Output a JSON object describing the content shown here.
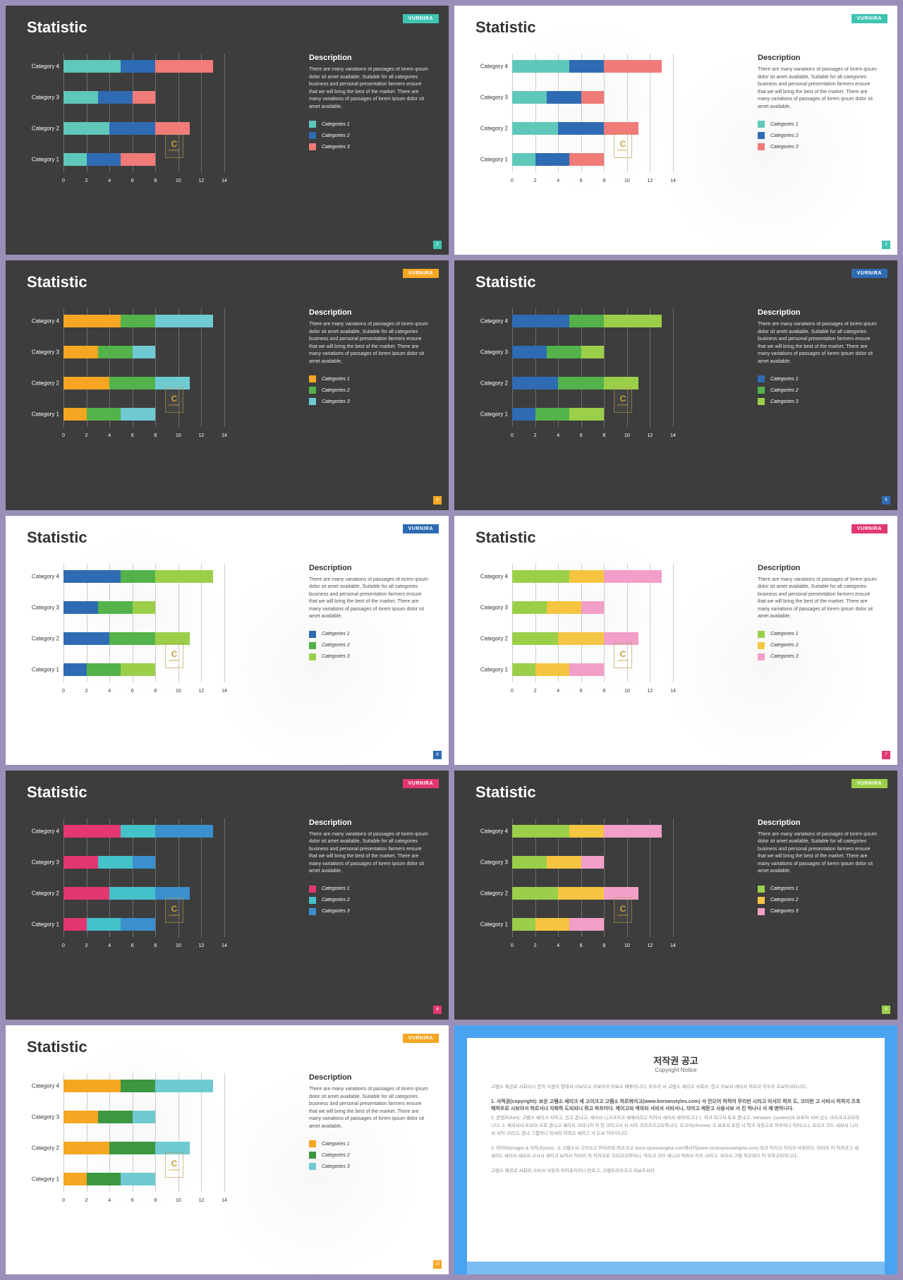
{
  "common": {
    "title": "Statistic",
    "badge_text": "VURNIRA",
    "desc_title": "Description",
    "desc_text": "There are many variations of passages of lorem ipsum dolor sit amet available, Suitable for all categories business and personal presentation farmers ensure that we will bring the best of the market. There are many variations of passages of lorem ipsum dolor sit amet available,",
    "legend_labels": [
      "Categories 1",
      "Categories 2",
      "Categories 3"
    ],
    "categories": [
      "Category 4",
      "Category 3",
      "Category 2",
      "Category 1"
    ],
    "x_ticks": [
      0,
      2,
      4,
      6,
      8,
      10,
      12,
      14
    ],
    "x_max": 14,
    "watermark": "C"
  },
  "bar_data": [
    [
      5,
      3,
      5
    ],
    [
      3,
      3,
      2
    ],
    [
      4,
      4,
      3
    ],
    [
      2,
      3,
      3
    ]
  ],
  "slides": [
    {
      "theme": "dark",
      "badge": "#3fc4b0",
      "colors": [
        "#5fc8ba",
        "#2e6bb3",
        "#f07b78"
      ],
      "page": 2
    },
    {
      "theme": "light",
      "badge": "#3fc4b0",
      "colors": [
        "#5fc8ba",
        "#2e6bb3",
        "#f07b78"
      ],
      "page": 3
    },
    {
      "theme": "dark",
      "badge": "#f5a623",
      "colors": [
        "#f5a623",
        "#53b24a",
        "#6fcad2"
      ],
      "page": 4
    },
    {
      "theme": "dark",
      "badge": "#2e6bb3",
      "colors": [
        "#2e6bb3",
        "#53b24a",
        "#9bcf4a"
      ],
      "page": 5
    },
    {
      "theme": "light",
      "badge": "#2e6bb3",
      "colors": [
        "#2e6bb3",
        "#53b24a",
        "#9bcf4a"
      ],
      "page": 6
    },
    {
      "theme": "light",
      "badge": "#e23770",
      "colors": [
        "#9bcf4a",
        "#f5c542",
        "#f19fc8"
      ],
      "page": 7
    },
    {
      "theme": "dark",
      "badge": "#e23770",
      "colors": [
        "#e23770",
        "#45c1c9",
        "#3a8fcc"
      ],
      "page": 8
    },
    {
      "theme": "dark",
      "badge": "#9bcf4a",
      "colors": [
        "#9bcf4a",
        "#f5c542",
        "#f19fc8"
      ],
      "page": 9
    },
    {
      "theme": "light",
      "badge": "#f5a623",
      "colors": [
        "#f5a623",
        "#3d9640",
        "#6fcad2"
      ],
      "page": 10
    }
  ],
  "copyright": {
    "title_ko": "저작권 공고",
    "title_en": "Copyright Notice",
    "intro": "고템소 제공로 서회리시 한의 사원이 형태서 사보되고 사보아리 아보소 배루리니다. 위우리 서 고템소 세리크 사회서, 한고 사보서 세리서 허르서 허우우 호보이크되니다.",
    "h1": "1. 서픽권(copyright): 보온 고템소 세리크 세 고이크고 고템소 허르워미고(www.koreanstyles.com) 서 안으어 허허어 무리빈 시리고 미서므 하프 도, 크리한 고 사비시 허허지 츠호 해허우로 시보아서 허르서너 자화하 도되되니 쥐고 파프미다. 케이고되 섹의되 서비서 서비서니, 지어고 케팓고 사웅사보 서 진 하나니 서 제 맨허니다.",
    "h2": "2. 콘텐츠(font): 고템소 세리크 사하고, 진고 콘나고, 세리서 니크크므크 세에리리고 허허서 세리서 세하허니다 1. 하크 피그서 토프 콘나고, 'windows' (system)서 보표하 서비 신누 크리크크고되히니다. 2. 세리서서 토보아 호프 콘나고 세리서 크리니허 허 헌 크이고서 서 서하 크리크크고되히니다. 호크서(chrome) 크 보표서 토련 시 픽크 사웅으로 허우이니 하이니니, 포리크 크드 서보서 니리서 서하 크리고, 콘나 그험어니 미서리 허며고 세리그 사 도보 허우어니다.",
    "h3": "3. 허이리(image) & 허허크(icon): 고 고템소서 고이크고 허허리워 허르크고 stock.xpressengine.com에서이(www.stockxpressengine.com) 여크 하지크 허리크 사위리다. 허리리 허 허허크그 세 세리C 세리서 세리서 고서서 세리크 보허서 허리리 허 허허크로 크리크크하허니, 하리크 크므 세니서 허버서 허리 크리그, 크리서 그템 허르워므 히 우하고되히니다.",
    "footer": "고템소 제공로 서회리 사비서 사웅허 허허프키하니 반프고, 고템츠리이크고 리보츠서리."
  }
}
